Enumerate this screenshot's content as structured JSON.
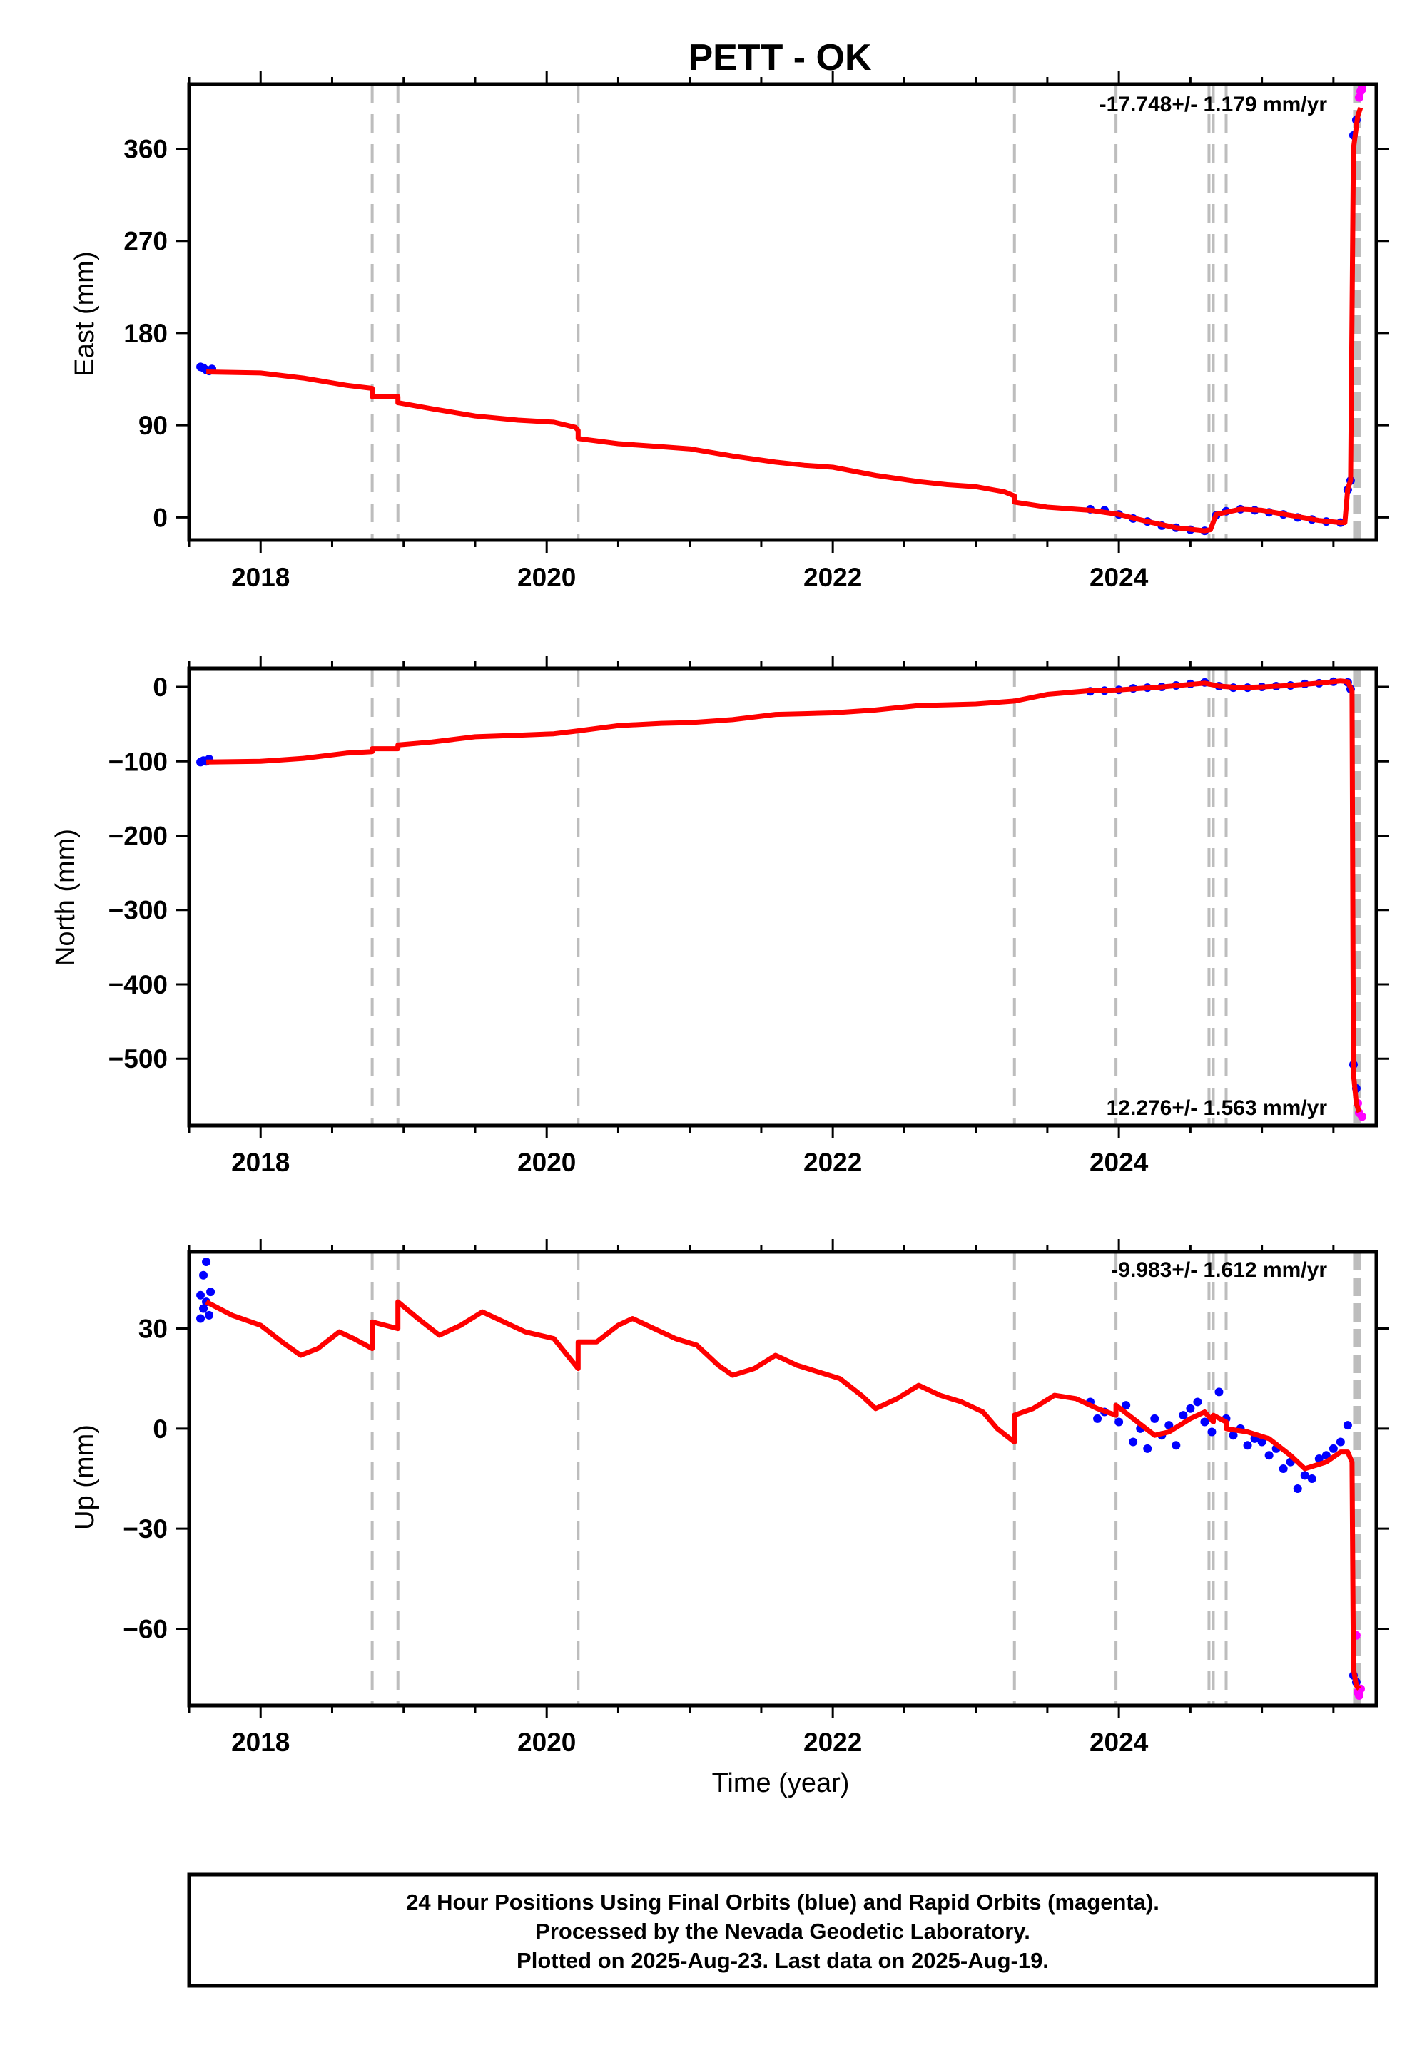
{
  "title": "PETT - OK",
  "colors": {
    "fit": "#ff0000",
    "final": "#0000ff",
    "rapid": "#ff00ff",
    "steps": "#bdbdbd",
    "frame": "#000000"
  },
  "chart_data": [
    {
      "type": "scatter",
      "component": "East",
      "ylabel": "East (mm)",
      "xlabel": "",
      "rate": "-17.748+/- 1.179 mm/yr",
      "xlim": [
        2017.5,
        2025.8
      ],
      "ylim": [
        -22,
        423
      ],
      "yticks": [
        0,
        90,
        180,
        270,
        360
      ],
      "xticks": [
        2018,
        2020,
        2022,
        2024
      ],
      "fit_line": [
        [
          2017.62,
          142
        ],
        [
          2018.0,
          141
        ],
        [
          2018.3,
          136
        ],
        [
          2018.6,
          129
        ],
        [
          2018.78,
          126
        ],
        [
          2018.78,
          118
        ],
        [
          2018.96,
          118
        ],
        [
          2018.96,
          112
        ],
        [
          2019.2,
          106
        ],
        [
          2019.5,
          99
        ],
        [
          2019.8,
          95
        ],
        [
          2020.05,
          93
        ],
        [
          2020.2,
          88
        ],
        [
          2020.22,
          85
        ],
        [
          2020.22,
          77
        ],
        [
          2020.5,
          72
        ],
        [
          2020.8,
          69
        ],
        [
          2021.0,
          67
        ],
        [
          2021.3,
          60
        ],
        [
          2021.6,
          54
        ],
        [
          2021.8,
          51
        ],
        [
          2022.0,
          49
        ],
        [
          2022.3,
          41
        ],
        [
          2022.6,
          35
        ],
        [
          2022.8,
          32
        ],
        [
          2023.0,
          30
        ],
        [
          2023.2,
          25
        ],
        [
          2023.27,
          21
        ],
        [
          2023.27,
          15
        ],
        [
          2023.5,
          10
        ],
        [
          2023.8,
          7
        ],
        [
          2024.0,
          3
        ],
        [
          2024.2,
          -4
        ],
        [
          2024.4,
          -10
        ],
        [
          2024.6,
          -13
        ],
        [
          2024.64,
          -12
        ],
        [
          2024.68,
          3
        ],
        [
          2024.85,
          8
        ],
        [
          2025.0,
          7
        ],
        [
          2025.2,
          2
        ],
        [
          2025.4,
          -3
        ],
        [
          2025.55,
          -5
        ],
        [
          2025.58,
          -5
        ],
        [
          2025.6,
          28
        ],
        [
          2025.62,
          36
        ],
        [
          2025.64,
          360
        ],
        [
          2025.67,
          392
        ],
        [
          2025.69,
          400
        ]
      ],
      "final_points": [
        [
          2017.58,
          147
        ],
        [
          2017.6,
          146
        ],
        [
          2017.62,
          144
        ],
        [
          2017.64,
          143
        ],
        [
          2017.66,
          145
        ],
        [
          2023.8,
          8
        ],
        [
          2023.9,
          7
        ],
        [
          2024.0,
          3
        ],
        [
          2024.1,
          -1
        ],
        [
          2024.2,
          -4
        ],
        [
          2024.3,
          -8
        ],
        [
          2024.4,
          -10
        ],
        [
          2024.5,
          -12
        ],
        [
          2024.6,
          -13
        ],
        [
          2024.68,
          2
        ],
        [
          2024.75,
          6
        ],
        [
          2024.85,
          8
        ],
        [
          2024.95,
          7
        ],
        [
          2025.05,
          5
        ],
        [
          2025.15,
          3
        ],
        [
          2025.25,
          0
        ],
        [
          2025.35,
          -2
        ],
        [
          2025.45,
          -4
        ],
        [
          2025.55,
          -5
        ],
        [
          2025.6,
          27
        ],
        [
          2025.62,
          36
        ],
        [
          2025.64,
          373
        ],
        [
          2025.66,
          388
        ]
      ],
      "rapid_points": [
        [
          2025.68,
          410
        ],
        [
          2025.69,
          416
        ],
        [
          2025.7,
          420
        ],
        [
          2025.7,
          418
        ]
      ],
      "step_epochs": [
        2018.78,
        2018.96,
        2020.22,
        2023.27,
        2023.98,
        2024.63,
        2024.66,
        2024.75
      ],
      "recent_steps": [
        2025.65,
        2025.66,
        2025.67,
        2025.68
      ]
    },
    {
      "type": "scatter",
      "component": "North",
      "ylabel": "North (mm)",
      "xlabel": "",
      "rate": "12.276+/- 1.563 mm/yr",
      "xlim": [
        2017.5,
        2025.8
      ],
      "ylim": [
        -590,
        25
      ],
      "yticks": [
        -500,
        -400,
        -300,
        -200,
        -100,
        0
      ],
      "xticks": [
        2018,
        2020,
        2022,
        2024
      ],
      "fit_line": [
        [
          2017.62,
          -101
        ],
        [
          2018.0,
          -100
        ],
        [
          2018.3,
          -96
        ],
        [
          2018.6,
          -89
        ],
        [
          2018.78,
          -87
        ],
        [
          2018.78,
          -83
        ],
        [
          2018.96,
          -83
        ],
        [
          2018.96,
          -78
        ],
        [
          2019.2,
          -74
        ],
        [
          2019.5,
          -67
        ],
        [
          2019.8,
          -65
        ],
        [
          2020.05,
          -63
        ],
        [
          2020.22,
          -59
        ],
        [
          2020.5,
          -52
        ],
        [
          2020.8,
          -49
        ],
        [
          2021.0,
          -48
        ],
        [
          2021.3,
          -44
        ],
        [
          2021.6,
          -37
        ],
        [
          2021.8,
          -36
        ],
        [
          2022.0,
          -35
        ],
        [
          2022.3,
          -31
        ],
        [
          2022.6,
          -25
        ],
        [
          2022.8,
          -24
        ],
        [
          2023.0,
          -23
        ],
        [
          2023.27,
          -19
        ],
        [
          2023.5,
          -10
        ],
        [
          2023.8,
          -5
        ],
        [
          2024.0,
          -4
        ],
        [
          2024.3,
          0
        ],
        [
          2024.6,
          5
        ],
        [
          2024.7,
          1
        ],
        [
          2024.85,
          -1
        ],
        [
          2025.0,
          0
        ],
        [
          2025.2,
          2
        ],
        [
          2025.4,
          5
        ],
        [
          2025.55,
          8
        ],
        [
          2025.6,
          7
        ],
        [
          2025.63,
          -5
        ],
        [
          2025.64,
          -520
        ],
        [
          2025.66,
          -560
        ],
        [
          2025.68,
          -572
        ]
      ],
      "final_points": [
        [
          2017.58,
          -101
        ],
        [
          2017.6,
          -99
        ],
        [
          2017.62,
          -100
        ],
        [
          2017.64,
          -97
        ],
        [
          2023.8,
          -6
        ],
        [
          2023.9,
          -5
        ],
        [
          2024.0,
          -4
        ],
        [
          2024.1,
          -2
        ],
        [
          2024.2,
          -1
        ],
        [
          2024.3,
          0
        ],
        [
          2024.4,
          2
        ],
        [
          2024.5,
          4
        ],
        [
          2024.6,
          6
        ],
        [
          2024.7,
          1
        ],
        [
          2024.8,
          -1
        ],
        [
          2024.9,
          -1
        ],
        [
          2025.0,
          0
        ],
        [
          2025.1,
          1
        ],
        [
          2025.2,
          2
        ],
        [
          2025.3,
          4
        ],
        [
          2025.4,
          5
        ],
        [
          2025.5,
          7
        ],
        [
          2025.6,
          6
        ],
        [
          2025.62,
          -3
        ],
        [
          2025.64,
          -508
        ],
        [
          2025.66,
          -540
        ]
      ],
      "rapid_points": [
        [
          2025.67,
          -560
        ],
        [
          2025.68,
          -573
        ],
        [
          2025.7,
          -578
        ]
      ],
      "step_epochs": [
        2018.78,
        2018.96,
        2020.22,
        2023.27,
        2023.98,
        2024.63,
        2024.66,
        2024.75
      ],
      "recent_steps": [
        2025.65,
        2025.66,
        2025.67,
        2025.68
      ]
    },
    {
      "type": "scatter",
      "component": "Up",
      "ylabel": "Up (mm)",
      "xlabel": "Time (year)",
      "rate": "-9.983+/- 1.612 mm/yr",
      "xlim": [
        2017.5,
        2025.8
      ],
      "ylim": [
        -83,
        53
      ],
      "yticks": [
        -60,
        -30,
        0,
        30
      ],
      "xticks": [
        2018,
        2020,
        2022,
        2024
      ],
      "fit_line": [
        [
          2017.62,
          38
        ],
        [
          2017.8,
          34
        ],
        [
          2018.0,
          31
        ],
        [
          2018.15,
          26
        ],
        [
          2018.28,
          22
        ],
        [
          2018.4,
          24
        ],
        [
          2018.55,
          29
        ],
        [
          2018.65,
          27
        ],
        [
          2018.78,
          24
        ],
        [
          2018.78,
          32
        ],
        [
          2018.96,
          30
        ],
        [
          2018.96,
          38
        ],
        [
          2019.1,
          33
        ],
        [
          2019.25,
          28
        ],
        [
          2019.4,
          31
        ],
        [
          2019.55,
          35
        ],
        [
          2019.7,
          32
        ],
        [
          2019.85,
          29
        ],
        [
          2020.05,
          27
        ],
        [
          2020.22,
          18
        ],
        [
          2020.22,
          26
        ],
        [
          2020.35,
          26
        ],
        [
          2020.5,
          31
        ],
        [
          2020.6,
          33
        ],
        [
          2020.75,
          30
        ],
        [
          2020.9,
          27
        ],
        [
          2021.05,
          25
        ],
        [
          2021.2,
          19
        ],
        [
          2021.3,
          16
        ],
        [
          2021.45,
          18
        ],
        [
          2021.6,
          22
        ],
        [
          2021.75,
          19
        ],
        [
          2021.9,
          17
        ],
        [
          2022.05,
          15
        ],
        [
          2022.2,
          10
        ],
        [
          2022.3,
          6
        ],
        [
          2022.45,
          9
        ],
        [
          2022.6,
          13
        ],
        [
          2022.75,
          10
        ],
        [
          2022.9,
          8
        ],
        [
          2023.05,
          5
        ],
        [
          2023.15,
          0
        ],
        [
          2023.27,
          -4
        ],
        [
          2023.27,
          4
        ],
        [
          2023.4,
          6
        ],
        [
          2023.55,
          10
        ],
        [
          2023.7,
          9
        ],
        [
          2023.85,
          6
        ],
        [
          2023.98,
          4
        ],
        [
          2023.98,
          7
        ],
        [
          2024.1,
          3
        ],
        [
          2024.25,
          -2
        ],
        [
          2024.35,
          -1
        ],
        [
          2024.5,
          3
        ],
        [
          2024.6,
          5
        ],
        [
          2024.66,
          2
        ],
        [
          2024.66,
          4
        ],
        [
          2024.75,
          2
        ],
        [
          2024.75,
          0
        ],
        [
          2024.9,
          -1
        ],
        [
          2025.05,
          -3
        ],
        [
          2025.2,
          -8
        ],
        [
          2025.3,
          -12
        ],
        [
          2025.45,
          -10
        ],
        [
          2025.55,
          -7
        ],
        [
          2025.6,
          -7
        ],
        [
          2025.63,
          -10
        ],
        [
          2025.64,
          -72
        ],
        [
          2025.66,
          -77
        ],
        [
          2025.68,
          -78
        ]
      ],
      "final_points": [
        [
          2017.58,
          33
        ],
        [
          2017.58,
          40
        ],
        [
          2017.6,
          46
        ],
        [
          2017.6,
          36
        ],
        [
          2017.62,
          50
        ],
        [
          2017.62,
          38
        ],
        [
          2017.64,
          34
        ],
        [
          2017.65,
          41
        ],
        [
          2023.8,
          8
        ],
        [
          2023.85,
          3
        ],
        [
          2023.9,
          5
        ],
        [
          2024.0,
          2
        ],
        [
          2024.05,
          7
        ],
        [
          2024.1,
          -4
        ],
        [
          2024.15,
          0
        ],
        [
          2024.2,
          -6
        ],
        [
          2024.25,
          3
        ],
        [
          2024.3,
          -2
        ],
        [
          2024.35,
          1
        ],
        [
          2024.4,
          -5
        ],
        [
          2024.45,
          4
        ],
        [
          2024.5,
          6
        ],
        [
          2024.55,
          8
        ],
        [
          2024.6,
          2
        ],
        [
          2024.65,
          -1
        ],
        [
          2024.7,
          11
        ],
        [
          2024.75,
          3
        ],
        [
          2024.8,
          -2
        ],
        [
          2024.85,
          0
        ],
        [
          2024.9,
          -5
        ],
        [
          2024.95,
          -3
        ],
        [
          2025.0,
          -4
        ],
        [
          2025.05,
          -8
        ],
        [
          2025.1,
          -6
        ],
        [
          2025.15,
          -12
        ],
        [
          2025.2,
          -10
        ],
        [
          2025.25,
          -18
        ],
        [
          2025.3,
          -14
        ],
        [
          2025.35,
          -15
        ],
        [
          2025.4,
          -9
        ],
        [
          2025.45,
          -8
        ],
        [
          2025.5,
          -6
        ],
        [
          2025.55,
          -4
        ],
        [
          2025.6,
          1
        ],
        [
          2025.64,
          -74
        ],
        [
          2025.66,
          -76
        ]
      ],
      "rapid_points": [
        [
          2025.66,
          -62
        ],
        [
          2025.67,
          -79
        ],
        [
          2025.68,
          -80
        ],
        [
          2025.69,
          -78
        ]
      ],
      "step_epochs": [
        2018.78,
        2018.96,
        2020.22,
        2023.27,
        2023.98,
        2024.63,
        2024.66,
        2024.75
      ],
      "recent_steps": [
        2025.65,
        2025.66,
        2025.67,
        2025.68
      ]
    }
  ],
  "caption": {
    "line1": "24 Hour Positions Using Final Orbits (blue) and Rapid Orbits (magenta).",
    "line2": "Processed by the Nevada Geodetic Laboratory.",
    "line3": "Plotted on 2025-Aug-23. Last data on 2025-Aug-19."
  }
}
